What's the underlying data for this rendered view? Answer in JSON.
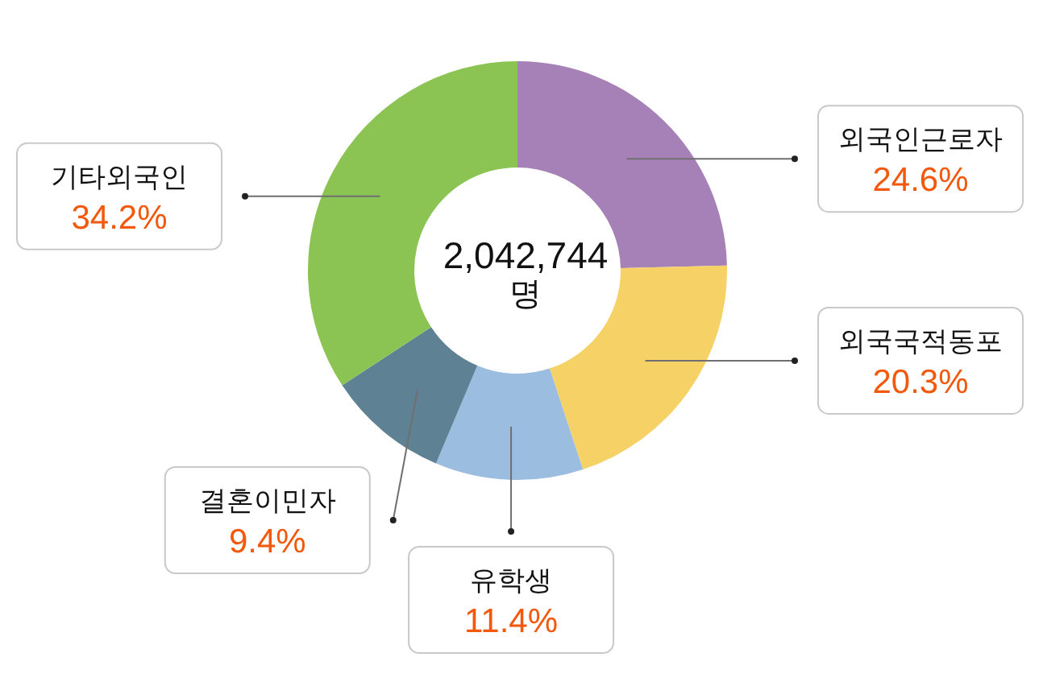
{
  "chart_data": {
    "type": "donut",
    "title": "2,042,744",
    "subtitle": "명",
    "categories": [
      "외국인근로자",
      "외국국적동포",
      "유학생",
      "결혼이민자",
      "기타외국인"
    ],
    "values": [
      24.6,
      20.3,
      11.4,
      9.4,
      34.2
    ],
    "colors": [
      "#a681b8",
      "#f6d166",
      "#9bbde0",
      "#5e8293",
      "#8bc453"
    ],
    "value_labels": [
      "24.6%",
      "20.3%",
      "11.4%",
      "9.4%",
      "34.2%"
    ]
  }
}
